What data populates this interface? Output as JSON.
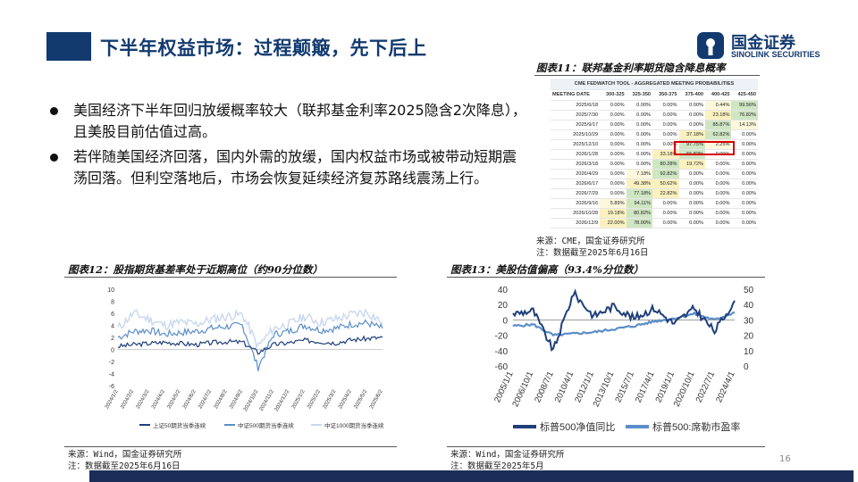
{
  "slide": {
    "title": "下半年权益市场：过程颠簸，先下后上",
    "page_number": "16",
    "colors": {
      "brand": "#123a6f",
      "highlight": "#d80000"
    }
  },
  "logo": {
    "name_cn": "国金证券",
    "name_en": "SINOLINK SECURITIES",
    "icon": "sinolink-logo-icon"
  },
  "bullets": [
    "美国经济下半年回归放缓概率较大（联邦基金利率2025隐含2次降息），且美股目前估值过高。",
    "若伴随美国经济回落，国内外需的放缓，国内权益市场或被带动短期震荡回落。但利空落地后，市场会恢复延续经济复苏路线震荡上行。"
  ],
  "fig11": {
    "title": "图表11：联邦基金利率期货隐含降息概率",
    "caption": "CME FEDWATCH TOOL - AGGREGATED MEETING PROBABILITIES",
    "columns": [
      "MEETING DATE",
      "300-325",
      "325-350",
      "350-375",
      "375-400",
      "400-425",
      "425-450"
    ],
    "rows": [
      [
        "2025/6/18",
        "0.00%",
        "0.00%",
        "0.00%",
        "0.00%",
        "0.44%",
        "99.56%"
      ],
      [
        "2025/7/30",
        "0.00%",
        "0.00%",
        "0.00%",
        "0.00%",
        "23.18%",
        "76.82%"
      ],
      [
        "2025/9/17",
        "0.00%",
        "0.00%",
        "0.00%",
        "0.00%",
        "85.87%",
        "14.13%"
      ],
      [
        "2025/10/29",
        "0.00%",
        "0.00%",
        "0.00%",
        "37.18%",
        "62.82%",
        "0.00%"
      ],
      [
        "2025/12/10",
        "0.00%",
        "0.00%",
        "0.00%",
        "97.75%",
        "2.25%",
        "0.00%"
      ],
      [
        "2026/1/28",
        "0.00%",
        "0.00%",
        "33.18%",
        "66.82%",
        "0.00%",
        "0.00%"
      ],
      [
        "2026/3/18",
        "0.00%",
        "0.00%",
        "80.28%",
        "19.72%",
        "0.00%",
        "0.00%"
      ],
      [
        "2026/4/29",
        "0.00%",
        "7.18%",
        "92.82%",
        "0.00%",
        "0.00%",
        "0.00%"
      ],
      [
        "2026/6/17",
        "0.00%",
        "49.38%",
        "50.62%",
        "0.00%",
        "0.00%",
        "0.00%"
      ],
      [
        "2026/7/29",
        "0.00%",
        "77.18%",
        "22.82%",
        "0.00%",
        "0.00%",
        "0.00%"
      ],
      [
        "2026/9/16",
        "5.89%",
        "94.11%",
        "0.00%",
        "0.00%",
        "0.00%",
        "0.00%"
      ],
      [
        "2026/10/28",
        "19.18%",
        "80.82%",
        "0.00%",
        "0.00%",
        "0.00%",
        "0.00%"
      ],
      [
        "2026/12/9",
        "22.00%",
        "78.00%",
        "0.00%",
        "0.00%",
        "0.00%",
        "0.00%"
      ]
    ],
    "source": "来源：CME，国金证券研究所",
    "note": "注：数据截至2025年6月16日"
  },
  "fig12": {
    "title": "图表12：股指期货基差率处于近期高位（约90分位数）",
    "source": "来源：Wind，国金证券研究所",
    "note": "注：数据截至2025年6月16日"
  },
  "fig13": {
    "title": "图表13：美股估值偏高（93.4%分位数）",
    "source": "来源：Wind，国金证券研究所",
    "note": "注：数据截至2025年5月"
  },
  "chart_data": [
    {
      "type": "line",
      "x": [
        "2024/1/2",
        "2024/2/2",
        "2024/3/2",
        "2024/4/2",
        "2024/5/2",
        "2024/6/2",
        "2024/7/2",
        "2024/8/2",
        "2024/9/2",
        "2024/10/2",
        "2024/11/2",
        "2024/12/2",
        "2025/1/2",
        "2025/2/2",
        "2025/3/2",
        "2025/4/2",
        "2025/5/2",
        "2025/6/2"
      ],
      "series": [
        {
          "name": "上证50期货当季连续",
          "color": "#1f3f7a",
          "values": [
            0.5,
            0.8,
            1,
            1.2,
            1,
            0.8,
            1.1,
            1.3,
            1.2,
            -0.5,
            0.8,
            1.1,
            1.5,
            1.3,
            1.1,
            1.6,
            1.8,
            2
          ]
        },
        {
          "name": "中证500期货当季连续",
          "color": "#5b8ec9",
          "values": [
            2,
            3,
            3.2,
            2.5,
            2.8,
            3,
            3.5,
            3.8,
            4,
            -3,
            2.5,
            3,
            4,
            3.2,
            3.5,
            4.2,
            4.4,
            3.5
          ]
        },
        {
          "name": "中证1000期货当季连续",
          "color": "#c8d8ee",
          "values": [
            3.5,
            6,
            5,
            4,
            4.5,
            4.2,
            5,
            5.5,
            5.8,
            0.5,
            3.5,
            4.2,
            5.5,
            4.5,
            5,
            5.8,
            6.2,
            4.5
          ]
        }
      ],
      "ylim": [
        -6,
        10
      ],
      "yticks": [
        -6,
        -4,
        -2,
        0,
        2,
        4,
        6,
        8,
        10
      ]
    },
    {
      "type": "line",
      "x": [
        "2005/1/1",
        "2006/10/1",
        "2008/7/1",
        "2010/4/1",
        "2012/1/1",
        "2013/10/1",
        "2015/7/1",
        "2017/4/1",
        "2019/1/1",
        "2020/10/1",
        "2022/7/1",
        "2024/4/1"
      ],
      "series": [
        {
          "name": "标普500净值同比",
          "color": "#1f3f7a",
          "axis": "left",
          "values": [
            8,
            12,
            -40,
            35,
            5,
            18,
            2,
            15,
            -5,
            15,
            -15,
            25
          ]
        },
        {
          "name": "标普500:席勒市盈率",
          "color": "#5b8ec9",
          "axis": "right",
          "values": [
            26,
            27,
            20,
            21,
            22,
            24,
            26,
            29,
            31,
            34,
            30,
            35
          ]
        }
      ],
      "y_left": {
        "ylim": [
          -60,
          40
        ],
        "ticks": [
          -60,
          -40,
          -20,
          0,
          20,
          40
        ]
      },
      "y_right": {
        "ylim": [
          0,
          50
        ],
        "ticks": [
          0,
          10,
          20,
          30,
          40,
          50
        ]
      }
    }
  ]
}
